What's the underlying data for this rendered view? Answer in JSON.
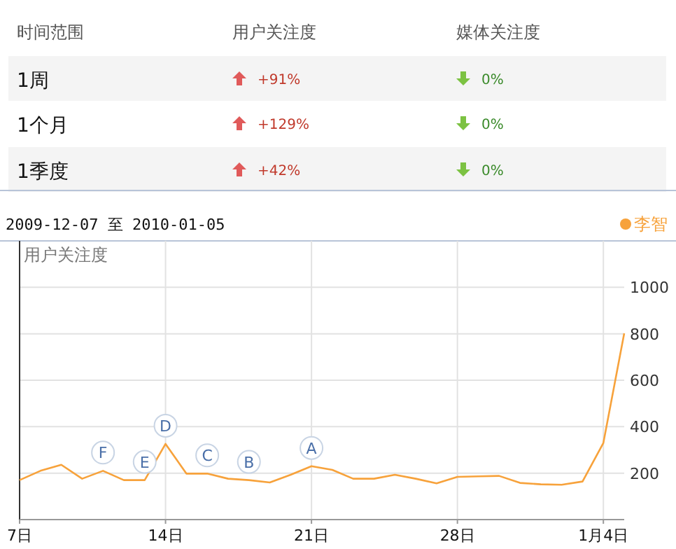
{
  "chart_data": [
    {
      "type": "other",
      "annotations": [
        "时间范围",
        "用户关注度",
        "媒体关注度",
        "1周",
        "+91%",
        "0%",
        "1个月",
        "+129%",
        "0%",
        "1季度",
        "+42%",
        "0%"
      ]
    },
    {
      "type": "line",
      "title": "2009-12-07 至 2010-01-05",
      "ylabel": "用户关注度",
      "x": [
        "2009-12-07",
        "2009-12-08",
        "2009-12-09",
        "2009-12-10",
        "2009-12-11",
        "2009-12-12",
        "2009-12-13",
        "2009-12-14",
        "2009-12-15",
        "2009-12-16",
        "2009-12-17",
        "2009-12-18",
        "2009-12-19",
        "2009-12-20",
        "2009-12-21",
        "2009-12-22",
        "2009-12-23",
        "2009-12-24",
        "2009-12-25",
        "2009-12-26",
        "2009-12-27",
        "2009-12-28",
        "2009-12-29",
        "2009-12-30",
        "2009-12-31",
        "2010-01-01",
        "2010-01-02",
        "2010-01-03",
        "2010-01-04",
        "2010-01-05"
      ],
      "series": [
        {
          "name": "李智",
          "color": "#f7a23b",
          "values": [
            170,
            210,
            236,
            176,
            210,
            170,
            170,
            326,
            198,
            198,
            176,
            170,
            160,
            193,
            230,
            214,
            176,
            176,
            193,
            176,
            156,
            184,
            186,
            188,
            158,
            152,
            150,
            164,
            330,
            802
          ]
        }
      ],
      "xlim": [
        "2009-12-07",
        "2010-01-05"
      ],
      "xticks": [
        {
          "value": "2009-12-07",
          "label": "7日"
        },
        {
          "value": "2009-12-14",
          "label": "14日"
        },
        {
          "value": "2009-12-21",
          "label": "21日"
        },
        {
          "value": "2009-12-28",
          "label": "28日"
        },
        {
          "value": "2010-01-04",
          "label": "1月4日"
        }
      ],
      "ylim": [
        0,
        1200
      ],
      "yticks": [
        200,
        400,
        600,
        800,
        1000
      ],
      "grid": true,
      "legend": "top right",
      "marker": "none",
      "annotations": [
        {
          "text": "A",
          "x": "2009-12-21",
          "y": 230
        },
        {
          "text": "B",
          "x": "2009-12-18",
          "y": 170
        },
        {
          "text": "C",
          "x": "2009-12-16",
          "y": 198
        },
        {
          "text": "D",
          "x": "2009-12-14",
          "y": 326
        },
        {
          "text": "E",
          "x": "2009-12-13",
          "y": 170
        },
        {
          "text": "F",
          "x": "2009-12-11",
          "y": 210
        }
      ]
    }
  ]
}
